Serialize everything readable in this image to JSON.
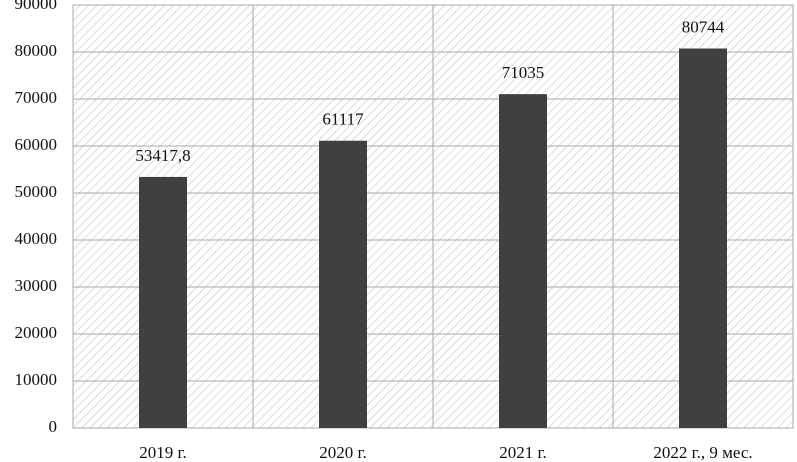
{
  "chart_data": {
    "type": "bar",
    "categories": [
      "2019 г.",
      "2020 г.",
      "2021 г.",
      "2022 г., 9 мес."
    ],
    "values": [
      53417.8,
      61117,
      71035,
      80744
    ],
    "value_labels": [
      "53417,8",
      "61117",
      "71035",
      "80744"
    ],
    "color": "#404040",
    "ylim": [
      0,
      90000
    ],
    "yticks": [
      0,
      10000,
      20000,
      30000,
      40000,
      50000,
      60000,
      70000,
      80000,
      90000
    ],
    "grid": true
  }
}
